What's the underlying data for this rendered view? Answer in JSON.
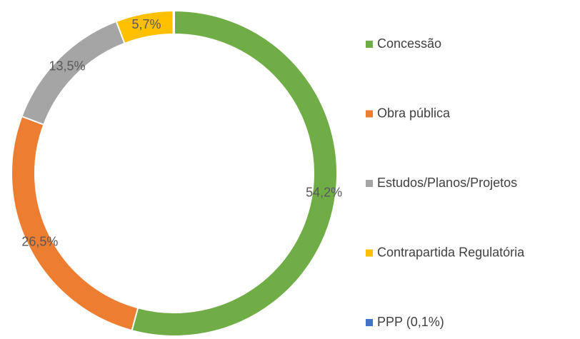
{
  "chart_data": {
    "type": "donut",
    "categories": [
      "Concessão",
      "Obra pública",
      "Estudos/Planos/Projetos",
      "Contrapartida Regulatória",
      "PPP (0,1%)"
    ],
    "values": [
      54.2,
      26.5,
      13.5,
      5.7,
      0.1
    ],
    "value_labels": [
      "54,2%",
      "26,5%",
      "13,5%",
      "5,7%",
      null
    ],
    "colors": [
      "#70ad47",
      "#ed7d31",
      "#a5a5a5",
      "#ffc000",
      "#4472c4"
    ],
    "legend": "right"
  }
}
